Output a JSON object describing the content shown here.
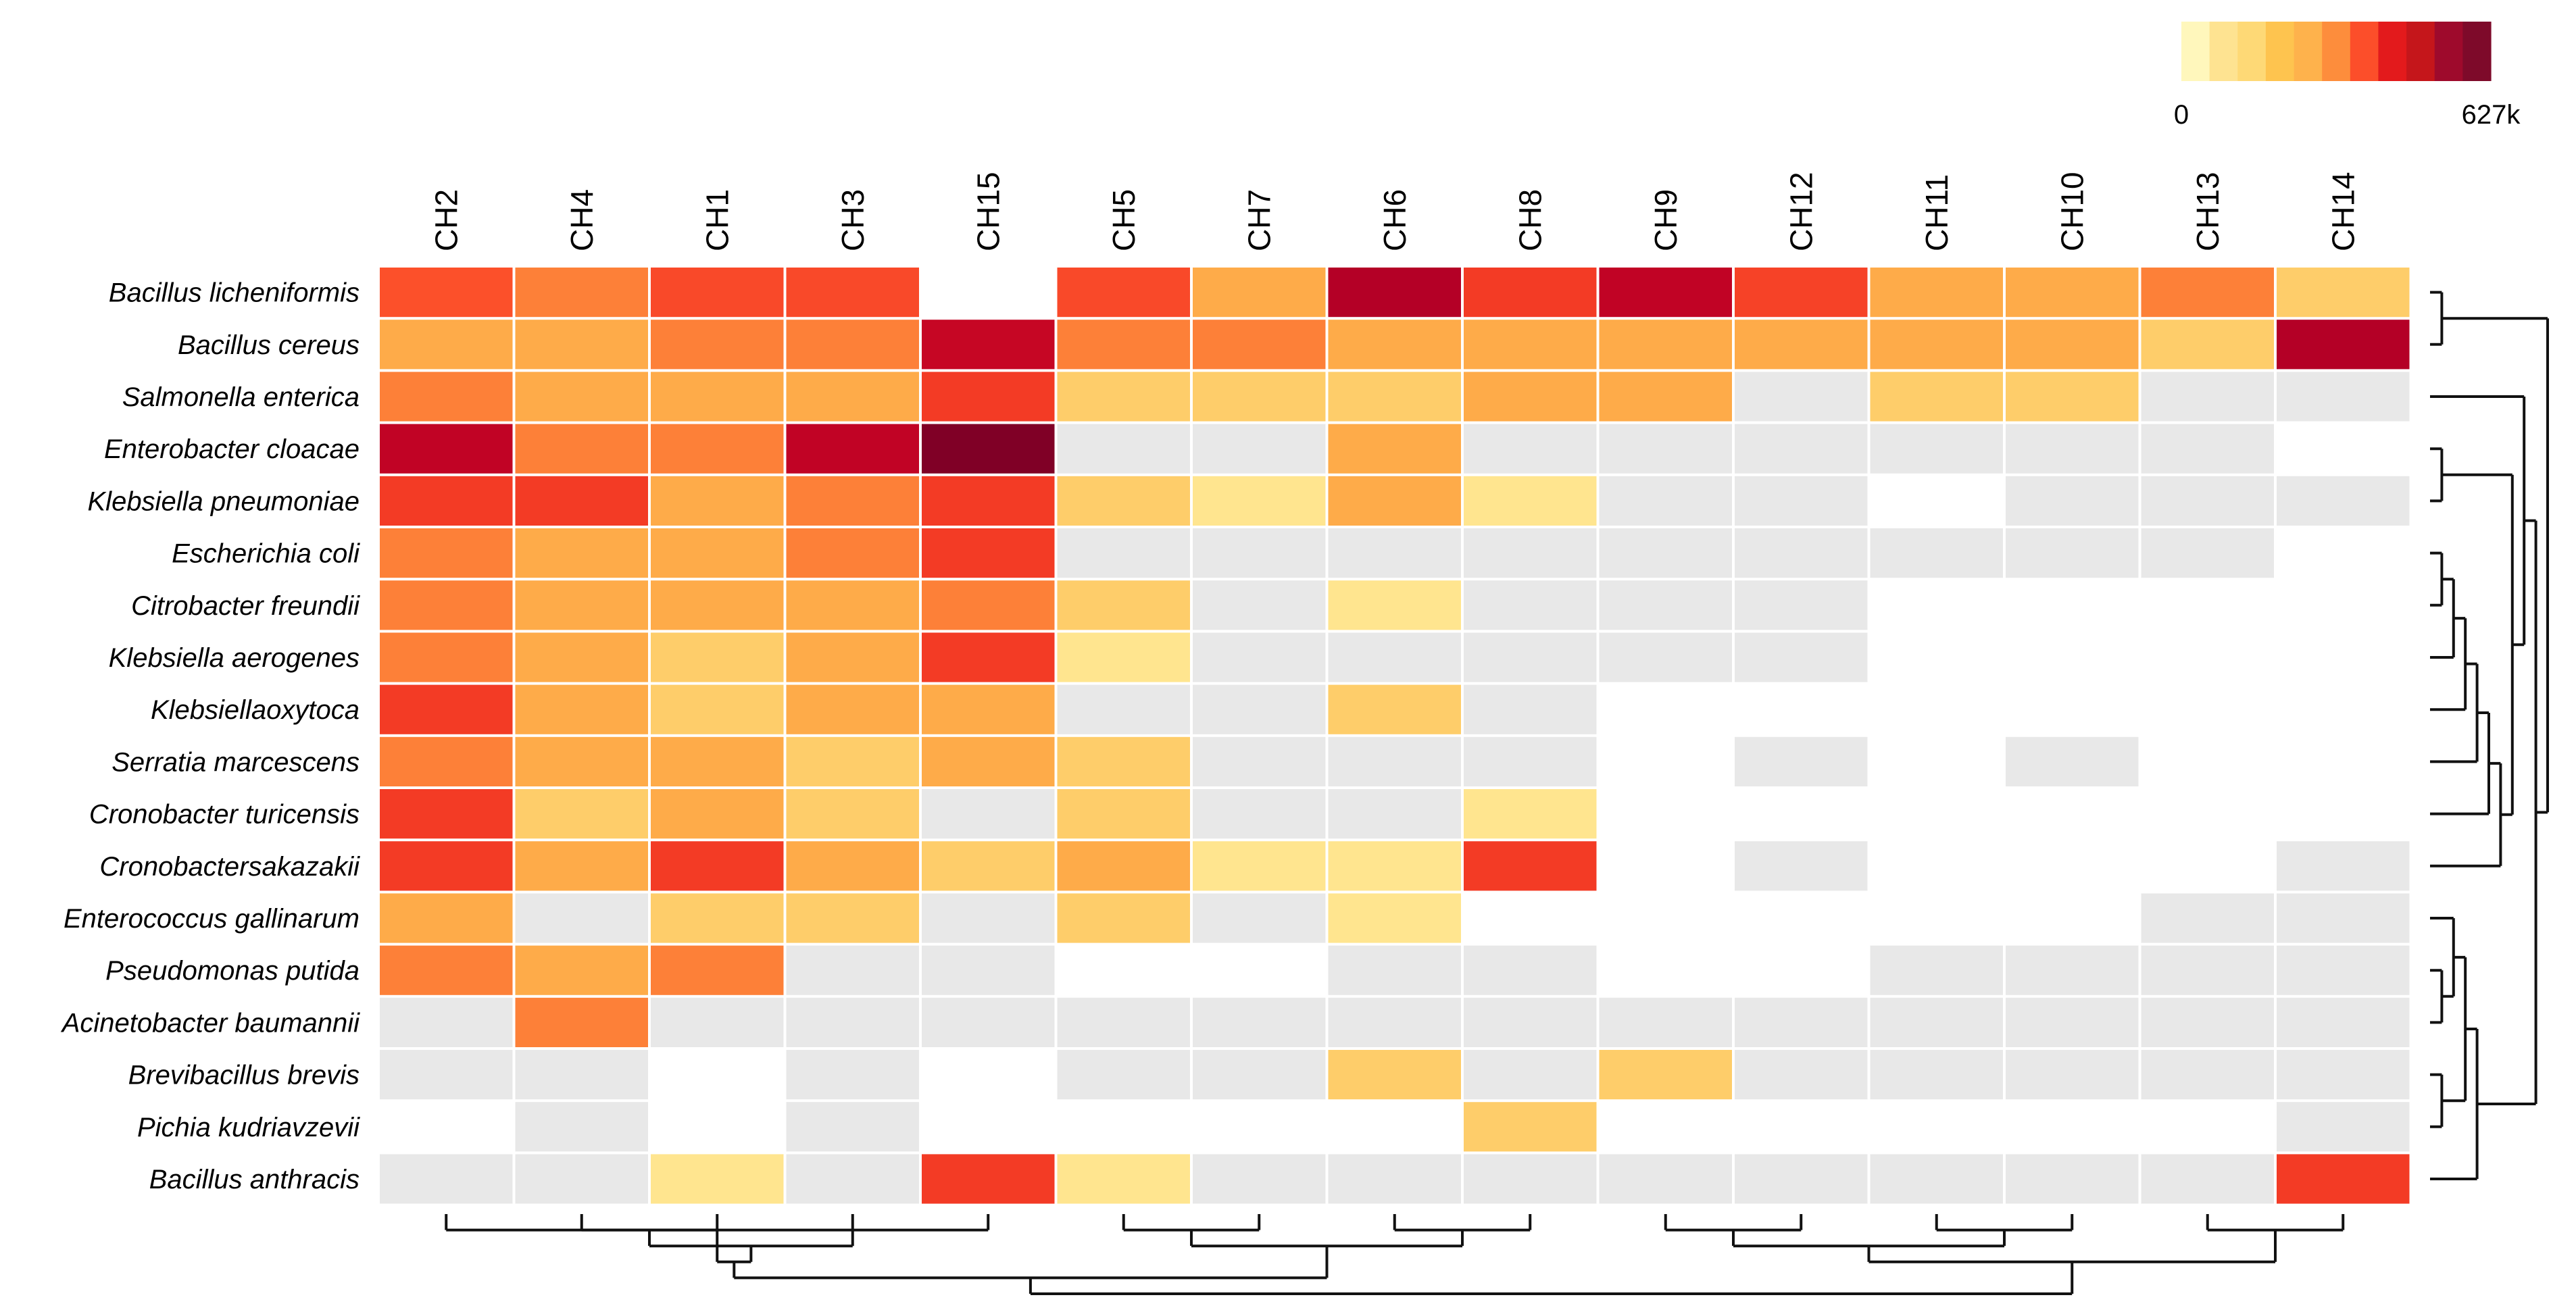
{
  "chart_data": {
    "type": "heatmap",
    "title": "",
    "value_unit": "k",
    "color_scale": {
      "min": 0,
      "max": 627,
      "min_label": "0",
      "max_label": "627k",
      "colors": [
        "#FFFFCC",
        "#FFEDA0",
        "#FED976",
        "#FEB24C",
        "#FD8D3C",
        "#FC4E2A",
        "#E31A1C",
        "#BD0026",
        "#800026"
      ],
      "colors_legend": [
        "#FFF7BC",
        "#FEE391",
        "#FED976",
        "#FEC44F",
        "#FEB24C",
        "#FD8D3C",
        "#FC4E2A",
        "#E31A1C",
        "#C5161B",
        "#9E0A2C",
        "#7E0A2A"
      ],
      "absent_color": "#E8E8E8"
    },
    "columns": [
      "CH2",
      "CH4",
      "CH1",
      "CH3",
      "CH15",
      "CH5",
      "CH7",
      "CH6",
      "CH8",
      "CH9",
      "CH12",
      "CH11",
      "CH10",
      "CH13",
      "CH14"
    ],
    "rows": [
      "Bacillus licheniformis",
      "Bacillus cereus",
      "Salmonella enterica",
      "Enterobacter cloacae",
      "Klebsiella pneumoniae",
      "Escherichia coli",
      "Citrobacter freundii",
      "Klebsiella aerogenes",
      "Klebsiellaoxytoca",
      "Serratia marcescens",
      "Cronobacter turicensis",
      "Cronobactersakazakii",
      "Enterococcus gallinarum",
      "Pseudomonas putida",
      "Acinetobacter baumannii",
      "Brevibacillus brevis",
      "Pichia kudriavzevii",
      "Bacillus anthracis"
    ],
    "values": [
      [
        390,
        330,
        400,
        400,
        null,
        400,
        250,
        560,
        420,
        540,
        410,
        250,
        250,
        330,
        180
      ],
      [
        250,
        250,
        330,
        330,
        530,
        330,
        330,
        250,
        250,
        250,
        250,
        250,
        250,
        180,
        560
      ],
      [
        330,
        250,
        250,
        250,
        420,
        180,
        180,
        180,
        250,
        250,
        0,
        180,
        180,
        0,
        0
      ],
      [
        540,
        330,
        330,
        540,
        627,
        0,
        0,
        250,
        0,
        0,
        0,
        0,
        0,
        0,
        null
      ],
      [
        420,
        420,
        250,
        330,
        420,
        180,
        110,
        250,
        110,
        0,
        0,
        null,
        0,
        0,
        0
      ],
      [
        330,
        250,
        250,
        330,
        420,
        0,
        0,
        0,
        0,
        0,
        0,
        0,
        0,
        0,
        null
      ],
      [
        330,
        250,
        250,
        250,
        330,
        180,
        0,
        110,
        0,
        0,
        0,
        null,
        null,
        null,
        null
      ],
      [
        330,
        250,
        180,
        250,
        420,
        110,
        0,
        0,
        0,
        0,
        0,
        null,
        null,
        null,
        null
      ],
      [
        420,
        250,
        180,
        250,
        250,
        0,
        0,
        180,
        0,
        null,
        null,
        null,
        null,
        null,
        null
      ],
      [
        330,
        250,
        250,
        180,
        250,
        180,
        0,
        0,
        0,
        null,
        0,
        null,
        0,
        null,
        null
      ],
      [
        420,
        180,
        250,
        180,
        0,
        180,
        0,
        0,
        110,
        null,
        null,
        null,
        null,
        null,
        null
      ],
      [
        420,
        250,
        420,
        250,
        180,
        250,
        110,
        110,
        420,
        null,
        0,
        null,
        null,
        null,
        0
      ],
      [
        250,
        0,
        180,
        180,
        0,
        180,
        0,
        110,
        null,
        null,
        null,
        null,
        null,
        0,
        0
      ],
      [
        330,
        250,
        330,
        0,
        0,
        null,
        null,
        0,
        0,
        null,
        null,
        0,
        0,
        0,
        0
      ],
      [
        0,
        330,
        0,
        0,
        0,
        0,
        0,
        0,
        0,
        0,
        0,
        0,
        0,
        0,
        0
      ],
      [
        0,
        0,
        null,
        0,
        null,
        0,
        0,
        180,
        0,
        180,
        0,
        0,
        0,
        0,
        0
      ],
      [
        null,
        0,
        null,
        0,
        null,
        null,
        null,
        null,
        180,
        null,
        null,
        null,
        null,
        null,
        0
      ],
      [
        0,
        0,
        110,
        0,
        420,
        110,
        0,
        0,
        0,
        0,
        0,
        0,
        0,
        0,
        420
      ]
    ],
    "value_legend_note": "null = not detected (blank); 0 = detected below scale (light grey)",
    "row_dendrogram": "((Bacillus licheniformis,Bacillus cereus),((Salmonella enterica,((Enterobacter cloacae,Klebsiella pneumoniae),((((((Escherichia coli,Citrobacter freundii),Klebsiella aerogenes),Klebsiellaoxytoca),Serratia marcescens),Cronobacter turicensis),Cronobactersakazakii))),(((Enterococcus gallinarum,(Pseudomonas putida,Acinetobacter baumannii)),(Brevibacillus brevis,Pichia kudriavzevii)),Bacillus anthracis)))",
    "column_dendrogram": "((((CH2,CH15),((CH4,CH1),CH3)),((CH5,CH7),(CH6,CH8))),(((CH9,CH12),(CH11,CH10)),(CH13,CH14)))"
  }
}
